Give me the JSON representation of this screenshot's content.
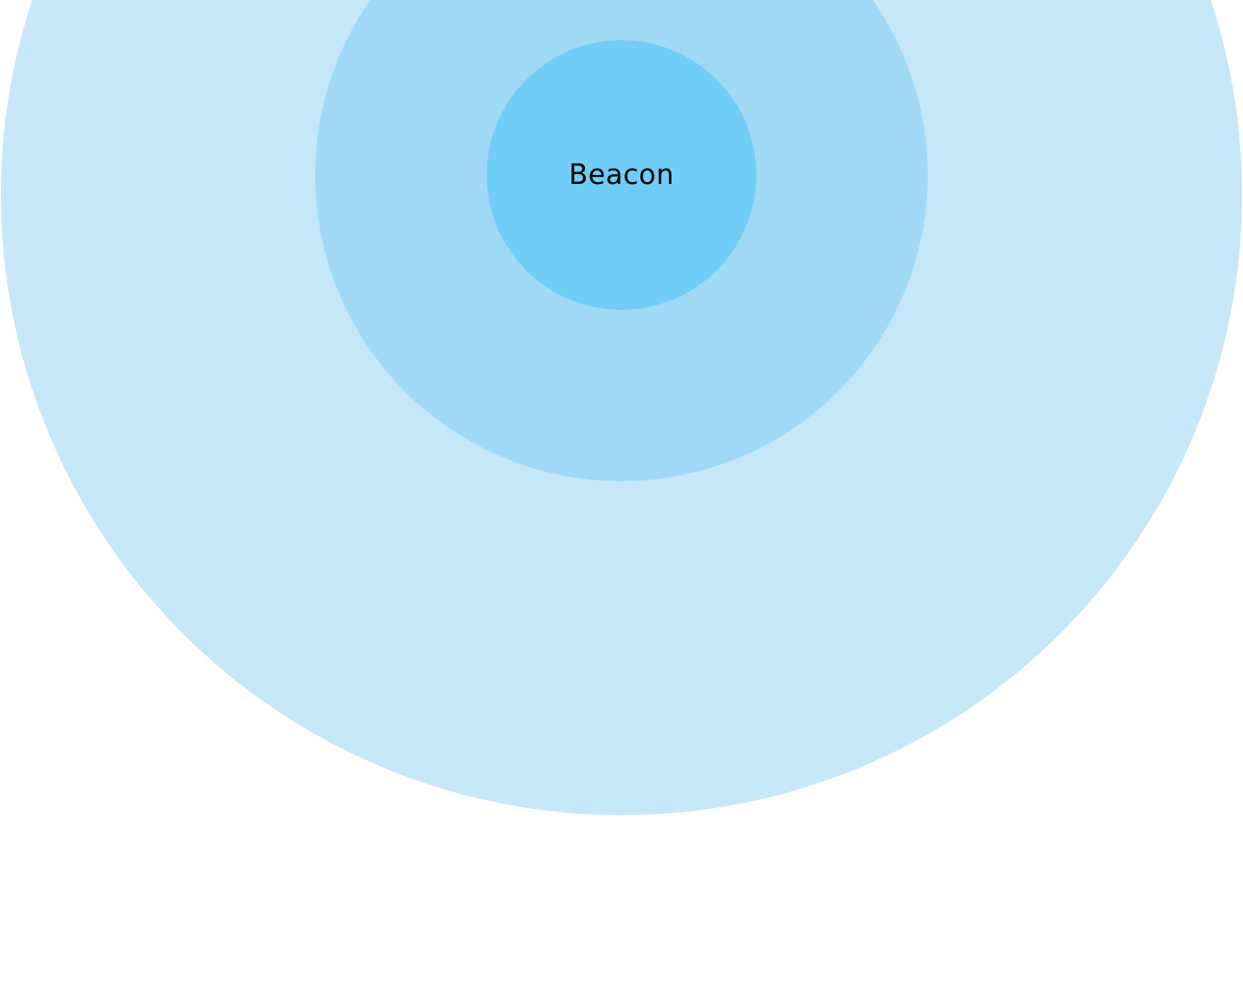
{
  "diagram": {
    "center_label": "Beacon",
    "colors": {
      "outer_ring": "#c6e7f8",
      "middle_ring": "#a0d9f6",
      "inner_circle": "#6fcdf6",
      "background": "#ffffff",
      "text": "#000000"
    }
  }
}
